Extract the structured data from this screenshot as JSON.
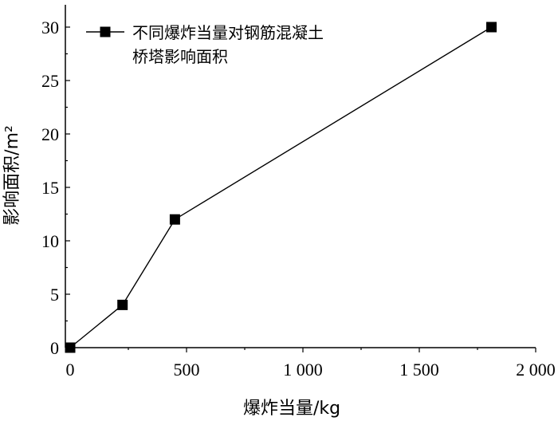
{
  "chart_data": {
    "type": "line",
    "title": "",
    "xlabel": "爆炸当量/kg",
    "ylabel": "影响面积/m²",
    "xlim": [
      0,
      2000
    ],
    "ylim": [
      0,
      32
    ],
    "x_ticks": [
      0,
      500,
      1000,
      1500,
      2000
    ],
    "x_tick_labels": [
      "0",
      "500",
      "1 000",
      "1 500",
      "2 000"
    ],
    "y_ticks": [
      0,
      5,
      10,
      15,
      20,
      25,
      30
    ],
    "y_tick_labels": [
      "0",
      "5",
      "10",
      "15",
      "20",
      "25",
      "30"
    ],
    "grid": false,
    "legend_position": "top-left",
    "series": [
      {
        "name_lines": [
          "不同爆炸当量对钢筋混凝土",
          "桥塔影响面积"
        ],
        "marker": "square",
        "color": "#000000",
        "x": [
          0,
          225,
          450,
          1810
        ],
        "y": [
          0,
          4,
          12,
          30
        ]
      }
    ]
  }
}
